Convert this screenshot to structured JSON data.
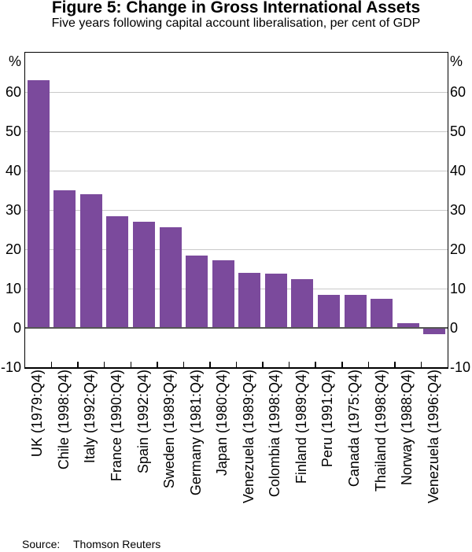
{
  "figure": {
    "title": "Figure 5: Change in Gross International Assets",
    "subtitle": "Five years following capital account liberalisation, per cent of GDP"
  },
  "source": {
    "label": "Source:",
    "value": "Thomson Reuters"
  },
  "chart_data": {
    "type": "bar",
    "title": "Figure 5: Change in Gross International Assets",
    "subtitle": "Five years following capital account liberalisation, per cent of GDP",
    "categories": [
      "UK (1979:Q4)",
      "Chile (1998:Q4)",
      "Italy (1992:Q4)",
      "France (1990:Q4)",
      "Spain (1992:Q4)",
      "Sweden (1989:Q4)",
      "Germany (1981:Q4)",
      "Japan (1980:Q4)",
      "Venezuela (1989:Q4)",
      "Colombia (1998:Q4)",
      "Finland (1989:Q4)",
      "Peru (1991:Q4)",
      "Canada (1975:Q4)",
      "Thailand (1998:Q4)",
      "Norway (1988:Q4)",
      "Venezuela (1996:Q4)"
    ],
    "values": [
      63,
      35,
      34,
      28.4,
      27,
      25.7,
      18.5,
      17.2,
      14,
      13.9,
      12.4,
      8.4,
      8.4,
      7.4,
      1.2,
      -1.5
    ],
    "ylabel": "%",
    "ylim": [
      -10,
      70
    ],
    "yticks": [
      -10,
      0,
      10,
      20,
      30,
      40,
      50,
      60
    ],
    "grid": "horizontal",
    "legend": "none",
    "bar_color": "#7b4a9c",
    "gridline_color": "#c9c9c9",
    "zero_line_color": "#555555",
    "source": "Thomson Reuters"
  }
}
